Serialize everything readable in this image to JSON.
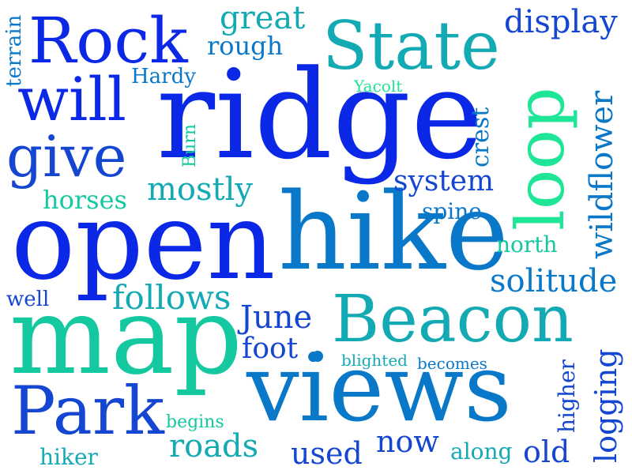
{
  "palette": {
    "royal_blue": "#0a28e6",
    "mid_blue": "#1446d2",
    "ocean_blue": "#0a78c8",
    "teal": "#14aab4",
    "aqua_green": "#14c8a0",
    "mint": "#1ee696"
  },
  "words": {
    "ridge": "ridge",
    "open": "open",
    "hike": "hike",
    "map": "map",
    "views": "views",
    "rock": "Rock",
    "state": "State",
    "loop": "loop",
    "beacon": "Beacon",
    "park": "Park",
    "will": "will",
    "give": "give",
    "great": "great",
    "display": "display",
    "rough": "rough",
    "terrain": "terrain",
    "hardy": "Hardy",
    "yacolt": "Yacolt",
    "burn": "Burn",
    "crest": "crest",
    "wildflower": "wildflower",
    "system": "system",
    "mostly": "mostly",
    "horses": "horses",
    "spine": "spine",
    "north": "north",
    "solitude": "solitude",
    "follows": "follows",
    "well": "well",
    "june": "June",
    "foot": "foot",
    "blighted": "blighted",
    "becomes": "becomes",
    "higher": "higher",
    "logging": "logging",
    "begins": "begins",
    "roads": "roads",
    "used": "used",
    "now": "now",
    "along": "along",
    "old": "old",
    "hiker": "hiker"
  }
}
